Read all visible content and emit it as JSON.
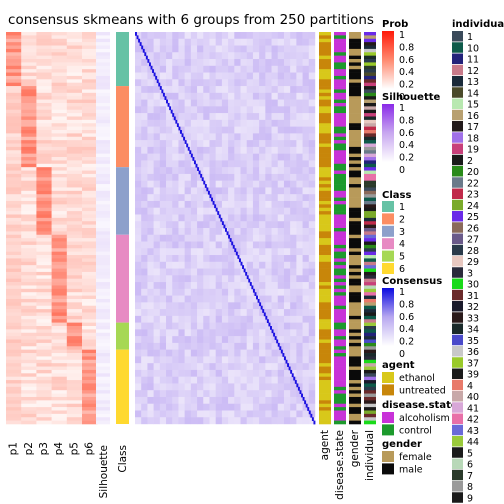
{
  "chart_data": {
    "type": "heatmap",
    "title": "consensus skmeans with 6 groups from 250 partitions",
    "prob_columns": [
      "p1",
      "p2",
      "p3",
      "p4",
      "p5",
      "p6"
    ],
    "annotation_columns": [
      "Silhouette",
      "Class"
    ],
    "right_annotation_columns": [
      "agent",
      "disease.state",
      "gender",
      "individual"
    ],
    "class_segments": [
      {
        "class": 1,
        "count": 16
      },
      {
        "class": 2,
        "count": 24
      },
      {
        "class": 3,
        "count": 20
      },
      {
        "class": 4,
        "count": 26
      },
      {
        "class": 5,
        "count": 8
      },
      {
        "class": 6,
        "count": 22
      }
    ],
    "legends": {
      "prob": {
        "title": "Prob",
        "ticks": [
          "1",
          "0.8",
          "0.6",
          "0.4",
          "0.2",
          "0"
        ]
      },
      "silhouette": {
        "title": "Silhouette",
        "ticks": [
          "1",
          "0.8",
          "0.6",
          "0.4",
          "0.2",
          "0"
        ]
      },
      "class": {
        "title": "Class",
        "items": [
          {
            "label": "1",
            "color": "#66C2A5"
          },
          {
            "label": "2",
            "color": "#FC8D62"
          },
          {
            "label": "3",
            "color": "#8DA0CB"
          },
          {
            "label": "4",
            "color": "#E78AC3"
          },
          {
            "label": "5",
            "color": "#A6D854"
          },
          {
            "label": "6",
            "color": "#FFD92F"
          }
        ]
      },
      "consensus": {
        "title": "Consensus",
        "ticks": [
          "1",
          "0.8",
          "0.6",
          "0.4",
          "0.2",
          "0"
        ]
      },
      "agent": {
        "title": "agent",
        "items": [
          {
            "label": "ethanol",
            "color": "#D8C81A"
          },
          {
            "label": "untreated",
            "color": "#C8860A"
          }
        ]
      },
      "disease_state": {
        "title": "disease.state",
        "items": [
          {
            "label": "alcoholism",
            "color": "#C832D8"
          },
          {
            "label": "control",
            "color": "#1C9A2C"
          }
        ]
      },
      "gender": {
        "title": "gender",
        "items": [
          {
            "label": "female",
            "color": "#B89A5A"
          },
          {
            "label": "male",
            "color": "#0A0A0A"
          }
        ]
      },
      "individual": {
        "title": "individual",
        "items": [
          {
            "label": "1",
            "color": "#3A4A5A"
          },
          {
            "label": "10",
            "color": "#0E5A4A"
          },
          {
            "label": "11",
            "color": "#22227A"
          },
          {
            "label": "12",
            "color": "#C87A8A"
          },
          {
            "label": "13",
            "color": "#1A2A3A"
          },
          {
            "label": "14",
            "color": "#4A4A2A"
          },
          {
            "label": "15",
            "color": "#B8E8B0"
          },
          {
            "label": "16",
            "color": "#B8A070"
          },
          {
            "label": "17",
            "color": "#221A1A"
          },
          {
            "label": "18",
            "color": "#A070E8"
          },
          {
            "label": "19",
            "color": "#C8407A"
          },
          {
            "label": "2",
            "color": "#1A1A1A"
          },
          {
            "label": "20",
            "color": "#2A8A1A"
          },
          {
            "label": "22",
            "color": "#6A7A8A"
          },
          {
            "label": "23",
            "color": "#C02A4A"
          },
          {
            "label": "24",
            "color": "#7AAA2A"
          },
          {
            "label": "25",
            "color": "#6A2AE8"
          },
          {
            "label": "26",
            "color": "#8A6A5A"
          },
          {
            "label": "27",
            "color": "#6A5A8A"
          },
          {
            "label": "28",
            "color": "#2A3A4A"
          },
          {
            "label": "29",
            "color": "#E8C8C0"
          },
          {
            "label": "3",
            "color": "#2A2A3A"
          },
          {
            "label": "30",
            "color": "#1ADA1A"
          },
          {
            "label": "31",
            "color": "#6A2A2A"
          },
          {
            "label": "32",
            "color": "#1A1A2A"
          },
          {
            "label": "33",
            "color": "#2A1A1A"
          },
          {
            "label": "34",
            "color": "#1A2A2A"
          },
          {
            "label": "35",
            "color": "#4A4ACA"
          },
          {
            "label": "36",
            "color": "#C8C8C8"
          },
          {
            "label": "37",
            "color": "#9ACA2A"
          },
          {
            "label": "39",
            "color": "#1A1A1A"
          },
          {
            "label": "4",
            "color": "#E87A6A"
          },
          {
            "label": "40",
            "color": "#C8A8A8"
          },
          {
            "label": "41",
            "color": "#D8A8D8"
          },
          {
            "label": "42",
            "color": "#E870A8"
          },
          {
            "label": "43",
            "color": "#6A6AD8"
          },
          {
            "label": "44",
            "color": "#9ACA3A"
          },
          {
            "label": "5",
            "color": "#1A1A1A"
          },
          {
            "label": "6",
            "color": "#B8D8B8"
          },
          {
            "label": "7",
            "color": "#2A3A2A"
          },
          {
            "label": "8",
            "color": "#9A9A9A"
          },
          {
            "label": "9",
            "color": "#1A1A1A"
          }
        ]
      }
    }
  }
}
